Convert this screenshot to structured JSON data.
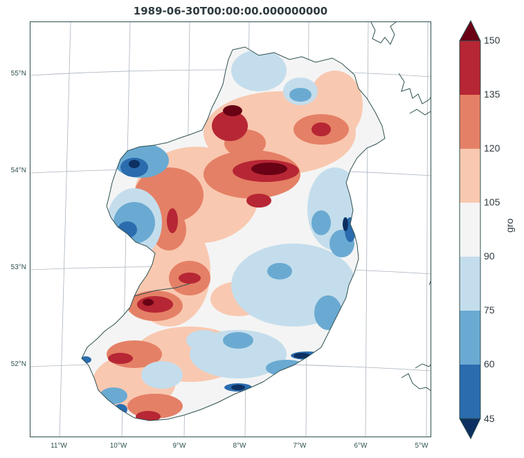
{
  "title": "1989-06-30T00:00:00.000000000",
  "colorbar": {
    "label": "gro",
    "ticks": [
      "45",
      "60",
      "75",
      "90",
      "105",
      "120",
      "135",
      "150"
    ],
    "levels": [
      {
        "from": 45,
        "to": 60,
        "color": "#2a6cae"
      },
      {
        "from": 60,
        "to": 75,
        "color": "#6aaad2"
      },
      {
        "from": 75,
        "to": 90,
        "color": "#c4ddec"
      },
      {
        "from": 90,
        "to": 105,
        "color": "#f4f4f4"
      },
      {
        "from": 105,
        "to": 120,
        "color": "#f9c8b0"
      },
      {
        "from": 120,
        "to": 135,
        "color": "#e48066"
      },
      {
        "from": 135,
        "to": 150,
        "color": "#b72634"
      }
    ],
    "under_color": "#0d3061",
    "over_color": "#690215"
  },
  "map": {
    "lat_labels": [
      "55°N",
      "54°N",
      "53°N",
      "52°N"
    ],
    "lon_labels": [
      "11°W",
      "10°W",
      "9°W",
      "8°W",
      "7°W",
      "6°W",
      "5°W"
    ]
  }
}
